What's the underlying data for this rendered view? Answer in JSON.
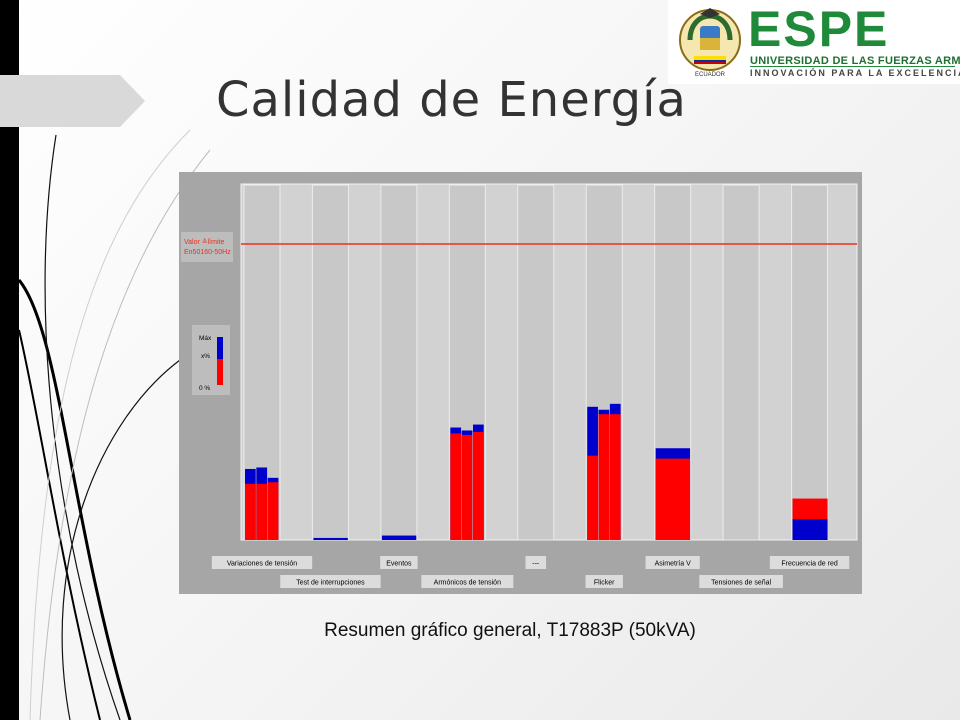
{
  "slide": {
    "title": "Calidad de Energía",
    "caption": "Resumen gráfico general, T17883P (50kVA)"
  },
  "logo": {
    "wordmark": "ESPE",
    "line1": "UNIVERSIDAD DE LAS FUERZAS ARMADAS",
    "line2": "INNOVACIÓN PARA LA EXCELENCIA",
    "seal_text": "ECUADOR"
  },
  "colors": {
    "limit_line": "#e8321e",
    "mean": "#ff0000",
    "max": "#0000cc",
    "panel": "#a6a6a6",
    "column": "#c8c8c8"
  },
  "chart_data": {
    "type": "bar",
    "limit_label": [
      "Valor ≙límite",
      "En50160-50Hz"
    ],
    "legend": {
      "max_label": "Máx",
      "mean_label": "x%",
      "zero_label": "0 %"
    },
    "ylim": [
      0,
      100
    ],
    "limit_value": 100,
    "categories": [
      {
        "label": "Variaciones de tensión",
        "row": 0,
        "bars": [
          {
            "mean": 19,
            "max": 24
          },
          {
            "mean": 19,
            "max": 24.5
          },
          {
            "mean": 19.5,
            "max": 21
          }
        ]
      },
      {
        "label": "Test de interrupciones",
        "row": 1,
        "bars": [
          {
            "mean": 0,
            "max": 0.7
          }
        ]
      },
      {
        "label": "Eventos",
        "row": 0,
        "bars": [
          {
            "mean": 0,
            "max": 1.5
          }
        ]
      },
      {
        "label": "Armónicos de tensión",
        "row": 1,
        "bars": [
          {
            "mean": 36,
            "max": 38
          },
          {
            "mean": 35.5,
            "max": 37
          },
          {
            "mean": 36.5,
            "max": 39
          }
        ]
      },
      {
        "label": "---",
        "row": 0,
        "bars": []
      },
      {
        "label": "Flicker",
        "row": 1,
        "bars": [
          {
            "mean": 28.5,
            "max": 45
          },
          {
            "mean": 42.5,
            "max": 44
          },
          {
            "mean": 42.5,
            "max": 46
          }
        ]
      },
      {
        "label": "Asimetría V",
        "row": 0,
        "bars": [
          {
            "mean": 27.5,
            "max": 31
          }
        ]
      },
      {
        "label": "Tensiones de señal",
        "row": 1,
        "bars": []
      },
      {
        "label": "Frecuencia de red",
        "row": 0,
        "bars": [
          {
            "mean": 14,
            "max": 7,
            "max_below": true
          }
        ]
      }
    ]
  }
}
